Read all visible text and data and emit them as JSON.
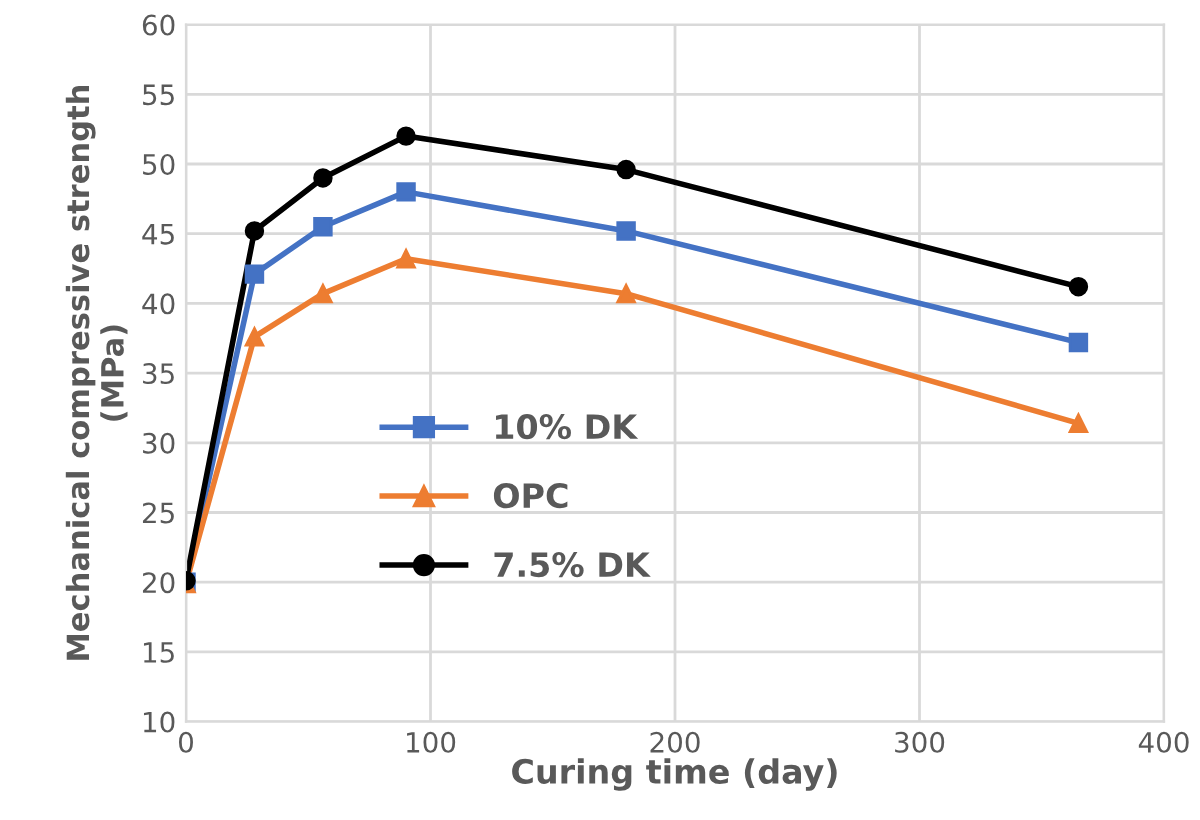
{
  "chart_data": {
    "type": "line",
    "xlabel": "Curing time (day)",
    "ylabel": "Mechanical compressive strength\n(MPa)",
    "x": [
      0,
      28,
      56,
      90,
      180,
      365
    ],
    "series": [
      {
        "name": "10% DK",
        "color": "#4472c4",
        "marker": "square",
        "values": [
          20,
          42.1,
          45.5,
          48,
          45.2,
          37.2
        ]
      },
      {
        "name": "OPC",
        "color": "#ed7d31",
        "marker": "triangle",
        "values": [
          19.9,
          37.6,
          40.7,
          43.2,
          40.7,
          31.4
        ]
      },
      {
        "name": "7.5% DK",
        "color": "#000000",
        "marker": "circle",
        "values": [
          20.1,
          45.2,
          49,
          52,
          49.6,
          41.2
        ]
      }
    ],
    "xlim": [
      0,
      400
    ],
    "xticks": [
      0,
      100,
      200,
      300,
      400
    ],
    "ylim": [
      10,
      60
    ],
    "yticks": [
      10,
      15,
      20,
      25,
      30,
      35,
      40,
      45,
      50,
      55,
      60
    ],
    "grid": true,
    "legend": "left",
    "line_style": "solid"
  }
}
